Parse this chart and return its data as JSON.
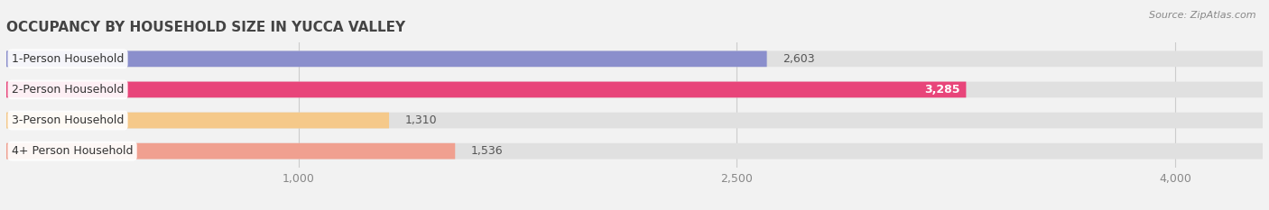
{
  "title": "OCCUPANCY BY HOUSEHOLD SIZE IN YUCCA VALLEY",
  "source": "Source: ZipAtlas.com",
  "categories": [
    "1-Person Household",
    "2-Person Household",
    "3-Person Household",
    "4+ Person Household"
  ],
  "values": [
    2603,
    3285,
    1310,
    1536
  ],
  "bar_colors": [
    "#8b8fcc",
    "#e8457a",
    "#f5c98a",
    "#f0a090"
  ],
  "value_inside": [
    false,
    true,
    false,
    false
  ],
  "value_label_colors": [
    "#555555",
    "#ffffff",
    "#555555",
    "#555555"
  ],
  "xlim": [
    0,
    4300
  ],
  "xticks": [
    1000,
    2500,
    4000
  ],
  "background_color": "#f2f2f2",
  "bar_bg_color": "#e0e0e0",
  "title_fontsize": 11,
  "bar_height": 0.52,
  "label_fontsize": 9,
  "value_fontsize": 9,
  "source_fontsize": 8
}
